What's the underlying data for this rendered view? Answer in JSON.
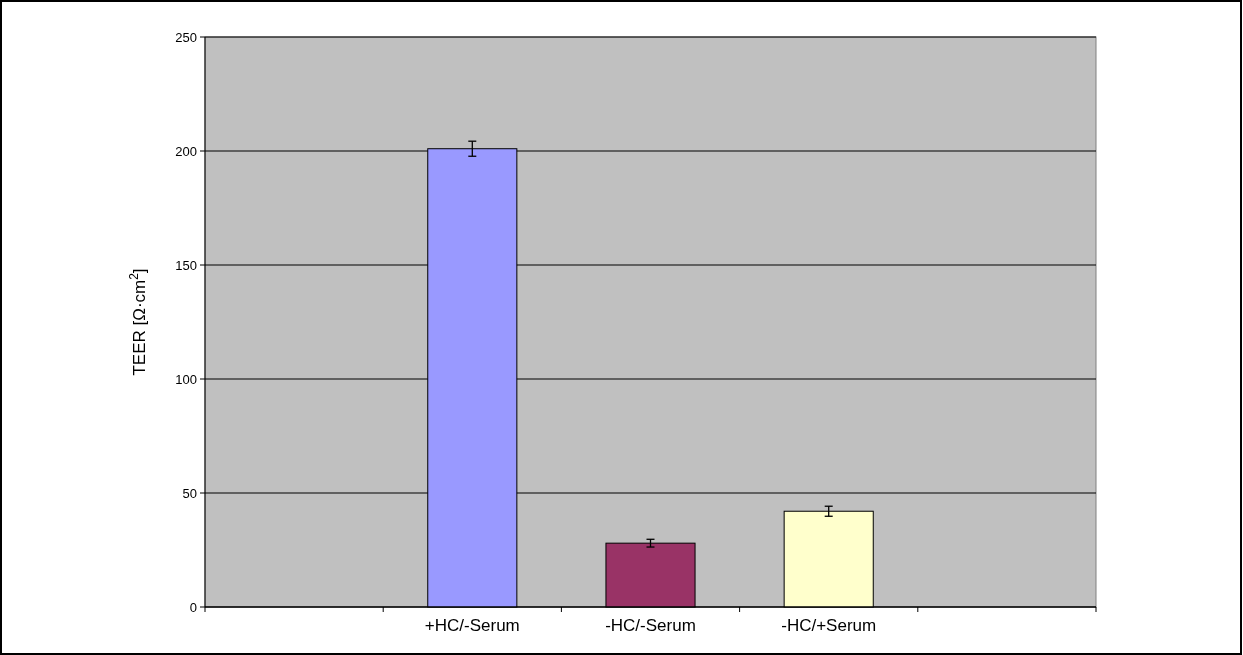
{
  "chart_data": {
    "type": "bar",
    "ylabel": "TEER [Ω·cm$^{2}$]",
    "categories": [
      null,
      "+HC/-Serum",
      "-HC/-Serum",
      "-HC/+Serum",
      null
    ],
    "values": [
      null,
      201,
      28,
      42,
      null
    ],
    "colors": [
      null,
      "#9999ff",
      "#993366",
      "#ffffcc",
      null
    ],
    "errors": [
      null,
      3.3,
      1.7,
      2.2,
      null
    ],
    "ylim": [
      0,
      250
    ],
    "yticks": [
      0,
      50,
      100,
      150,
      200,
      250
    ],
    "grid": "y"
  }
}
